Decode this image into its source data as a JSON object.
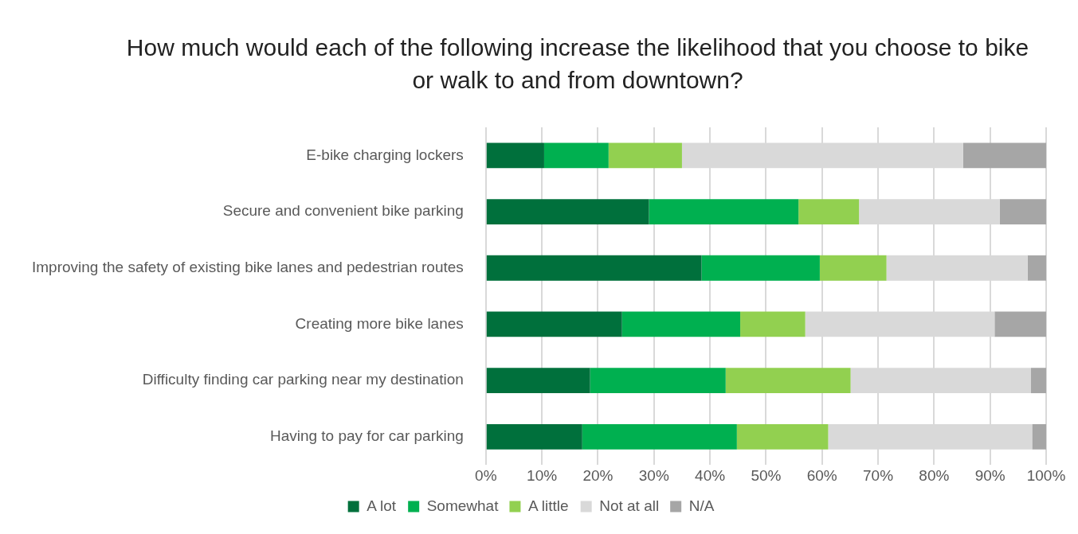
{
  "chart_data": {
    "type": "bar",
    "orientation": "horizontal",
    "stacked": true,
    "title": "How much would each of the following increase the likelihood that you choose to bike or walk to and from downtown?",
    "categories": [
      "E-bike charging lockers",
      "Secure and convenient bike parking",
      "Improving the safety of existing bike lanes and pedestrian routes",
      "Creating more bike lanes",
      "Difficulty finding car parking near my destination",
      "Having to pay for car parking"
    ],
    "series": [
      {
        "name": "A lot",
        "color": "#00703c",
        "values": [
          10.4,
          29.1,
          38.5,
          24.3,
          18.6,
          17.2
        ]
      },
      {
        "name": "Somewhat",
        "color": "#00b050",
        "values": [
          11.5,
          26.7,
          21.1,
          21.1,
          24.2,
          27.6
        ]
      },
      {
        "name": "A little",
        "color": "#92d050",
        "values": [
          13.1,
          10.8,
          11.9,
          11.6,
          22.3,
          16.3
        ]
      },
      {
        "name": "Not at all",
        "color": "#d9d9d9",
        "values": [
          50.2,
          25.1,
          25.2,
          33.8,
          32.2,
          36.4
        ]
      },
      {
        "name": "N/A",
        "color": "#a6a6a6",
        "values": [
          14.8,
          8.3,
          3.3,
          9.2,
          2.7,
          2.5
        ]
      }
    ],
    "xlim": [
      0,
      100
    ],
    "xticks": [
      {
        "value": 0,
        "label": "0%"
      },
      {
        "value": 10,
        "label": "10%"
      },
      {
        "value": 20,
        "label": "20%"
      },
      {
        "value": 30,
        "label": "30%"
      },
      {
        "value": 40,
        "label": "40%"
      },
      {
        "value": 50,
        "label": "50%"
      },
      {
        "value": 60,
        "label": "60%"
      },
      {
        "value": 70,
        "label": "70%"
      },
      {
        "value": 80,
        "label": "80%"
      },
      {
        "value": 90,
        "label": "90%"
      },
      {
        "value": 100,
        "label": "100%"
      }
    ],
    "grid": "x",
    "legend": "bottom"
  }
}
